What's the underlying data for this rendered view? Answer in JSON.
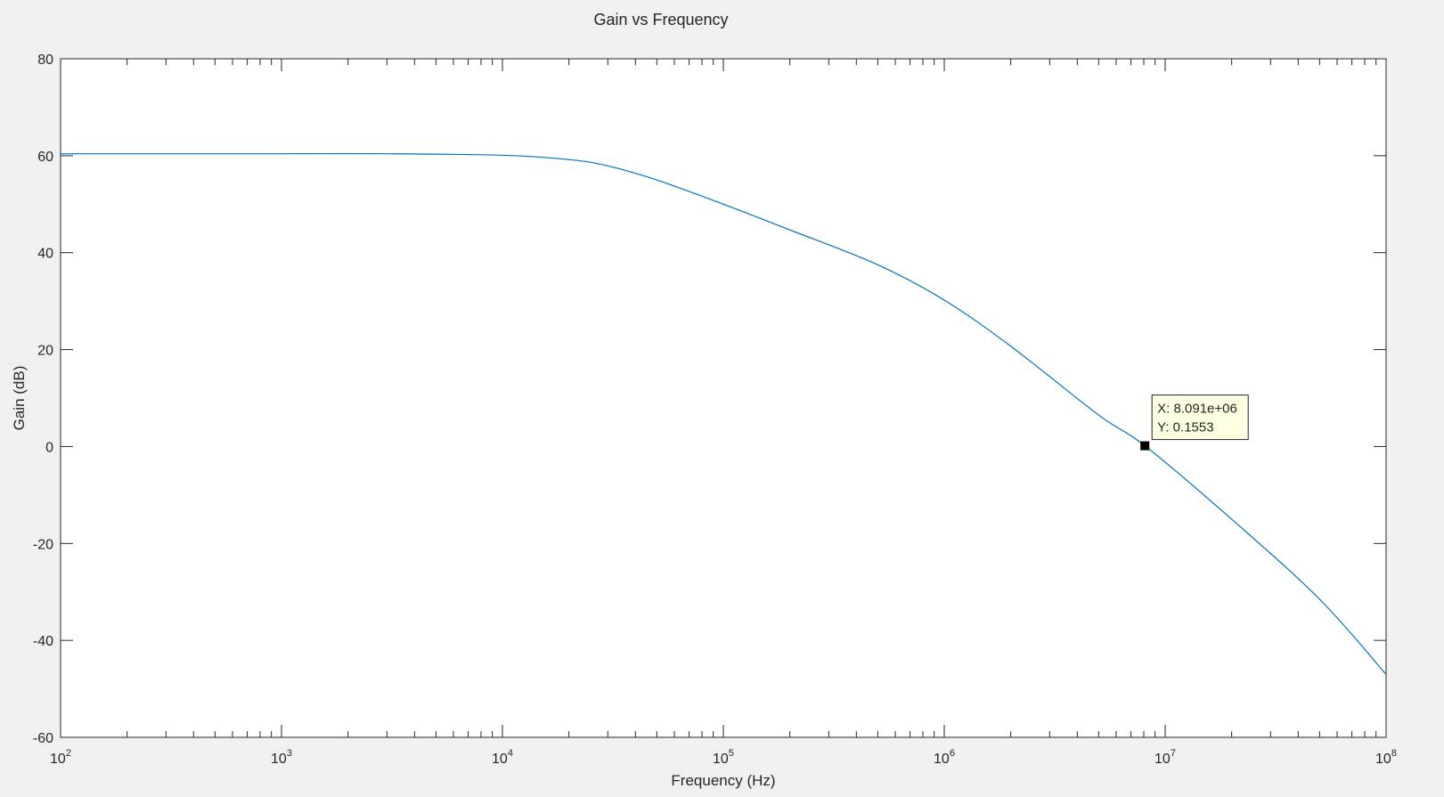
{
  "chart_data": {
    "type": "line",
    "title": "Gain vs Frequency",
    "xlabel": "Frequency (Hz)",
    "ylabel": "Gain (dB)",
    "xscale": "log",
    "xlim": [
      100,
      100000000
    ],
    "ylim": [
      -60,
      80
    ],
    "grid": false,
    "x_ticks": [
      {
        "base": "10",
        "exp": "2"
      },
      {
        "base": "10",
        "exp": "3"
      },
      {
        "base": "10",
        "exp": "4"
      },
      {
        "base": "10",
        "exp": "5"
      },
      {
        "base": "10",
        "exp": "6"
      },
      {
        "base": "10",
        "exp": "7"
      },
      {
        "base": "10",
        "exp": "8"
      }
    ],
    "y_ticks": [
      "-60",
      "-40",
      "-20",
      "0",
      "20",
      "40",
      "60",
      "80"
    ],
    "line_color": "#0072bd",
    "series": [
      {
        "x": [
          100,
          1000,
          3000,
          10000,
          20000,
          30000,
          50000,
          100000,
          200000,
          500000,
          1000000,
          2000000,
          5000000,
          8091000,
          20000000,
          50000000,
          100000000
        ],
        "y": [
          60.4,
          60.4,
          60.4,
          60.1,
          59.2,
          57.9,
          55.0,
          50.0,
          44.7,
          37.5,
          30.2,
          20.7,
          6.5,
          0.1553,
          -15.0,
          -31.5,
          -47.0
        ]
      }
    ],
    "datatip": {
      "x": 8091000,
      "y": 0.1553,
      "x_text": "X: 8.091e+06",
      "y_text": "Y: 0.1553"
    }
  }
}
